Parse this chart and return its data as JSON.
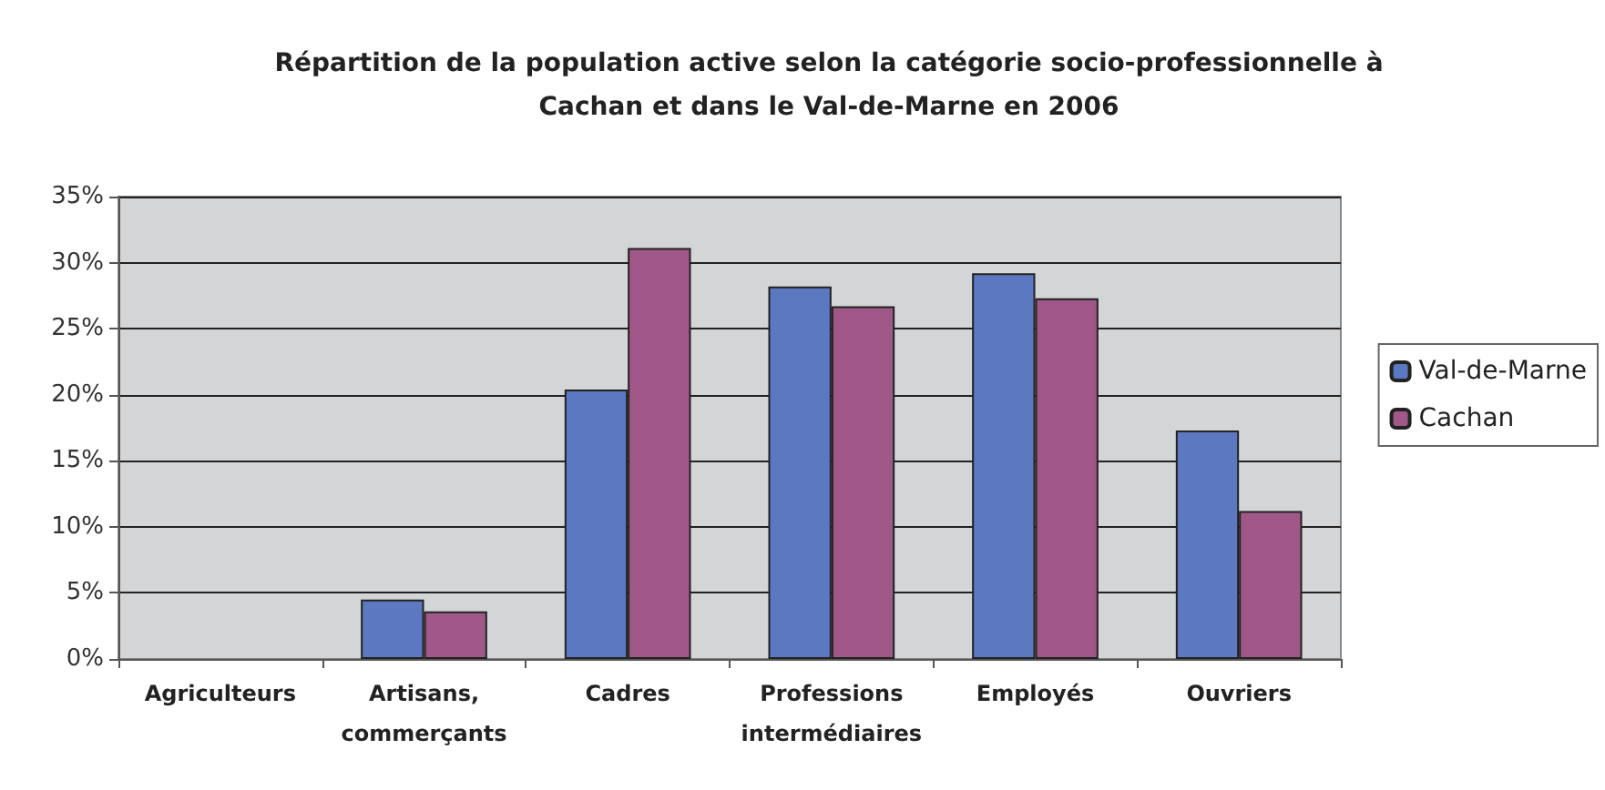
{
  "chart_data": {
    "type": "bar",
    "title": "Répartition de la population active selon la catégorie socio-professionnelle à\nCachan et dans le Val-de-Marne en 2006",
    "categories": [
      "Agriculteurs",
      "Artisans,\ncommerçants",
      "Cadres",
      "Professions\nintermédiaires",
      "Employés",
      "Ouvriers"
    ],
    "series": [
      {
        "name": "Val-de-Marne",
        "color": "#5b78c0",
        "values": [
          null,
          4.5,
          20.4,
          28.2,
          29.2,
          17.3
        ]
      },
      {
        "name": "Cachan",
        "color": "#a05888",
        "values": [
          null,
          3.6,
          31.1,
          26.7,
          27.3,
          11.2
        ]
      }
    ],
    "ylim": [
      0,
      35
    ],
    "yticks": [
      {
        "value": 0,
        "label": "0%"
      },
      {
        "value": 5,
        "label": "5%"
      },
      {
        "value": 10,
        "label": "10%"
      },
      {
        "value": 15,
        "label": "15%"
      },
      {
        "value": 20,
        "label": "20%"
      },
      {
        "value": 25,
        "label": "25%"
      },
      {
        "value": 30,
        "label": "30%"
      },
      {
        "value": 35,
        "label": "35%"
      }
    ],
    "grid": "y",
    "legend": "right"
  }
}
